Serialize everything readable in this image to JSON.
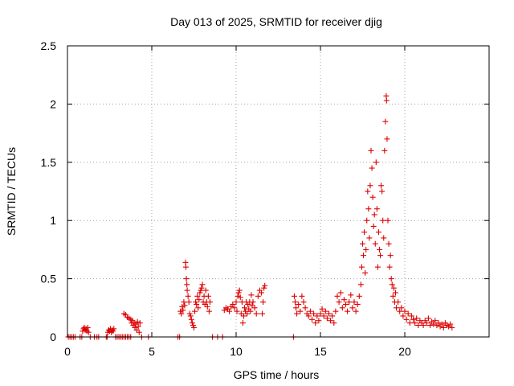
{
  "chart_data": {
    "type": "scatter",
    "title": "Day 013 of 2025, SRMTID for receiver djig",
    "xlabel": "GPS time / hours",
    "ylabel": "SRMTID / TECUs",
    "xlim": [
      0,
      25
    ],
    "ylim": [
      0,
      2.5
    ],
    "xticks": [
      0,
      5,
      10,
      15,
      20
    ],
    "xtick_labels": [
      "0",
      "5",
      "10",
      "15",
      "20"
    ],
    "yticks": [
      0,
      0.5,
      1,
      1.5,
      2,
      2.5
    ],
    "ytick_labels": [
      "0",
      "0.5",
      "1",
      "1.5",
      "2",
      "2.5"
    ],
    "grid": true,
    "marker": "+",
    "color": "#dd0000",
    "series": [
      {
        "name": "djig",
        "points": [
          [
            0.05,
            0
          ],
          [
            0.15,
            0
          ],
          [
            0.25,
            0
          ],
          [
            0.35,
            0
          ],
          [
            0.45,
            0
          ],
          [
            0.75,
            0
          ],
          [
            0.85,
            0
          ],
          [
            0.9,
            0.05
          ],
          [
            0.95,
            0.07
          ],
          [
            1.0,
            0.08
          ],
          [
            1.05,
            0.06
          ],
          [
            1.1,
            0.07
          ],
          [
            1.15,
            0.05
          ],
          [
            1.2,
            0.08
          ],
          [
            1.25,
            0.04
          ],
          [
            1.35,
            0
          ],
          [
            1.6,
            0
          ],
          [
            1.75,
            0
          ],
          [
            1.85,
            0
          ],
          [
            2.3,
            0
          ],
          [
            2.35,
            0
          ],
          [
            2.4,
            0.04
          ],
          [
            2.45,
            0.06
          ],
          [
            2.5,
            0.05
          ],
          [
            2.55,
            0.07
          ],
          [
            2.6,
            0.04
          ],
          [
            2.65,
            0.06
          ],
          [
            2.7,
            0.05
          ],
          [
            2.75,
            0.07
          ],
          [
            2.85,
            0
          ],
          [
            2.95,
            0
          ],
          [
            3.05,
            0
          ],
          [
            3.15,
            0
          ],
          [
            3.25,
            0
          ],
          [
            3.35,
            0
          ],
          [
            3.45,
            0
          ],
          [
            3.55,
            0
          ],
          [
            3.65,
            0
          ],
          [
            3.75,
            0
          ],
          [
            3.35,
            0.2
          ],
          [
            3.45,
            0.19
          ],
          [
            3.55,
            0.17
          ],
          [
            3.65,
            0.16
          ],
          [
            3.75,
            0.15
          ],
          [
            3.8,
            0.12
          ],
          [
            3.85,
            0.14
          ],
          [
            3.9,
            0.1
          ],
          [
            3.95,
            0.12
          ],
          [
            4.0,
            0.08
          ],
          [
            4.05,
            0.11
          ],
          [
            4.1,
            0.06
          ],
          [
            4.15,
            0.13
          ],
          [
            4.2,
            0.09
          ],
          [
            4.25,
            0.04
          ],
          [
            4.3,
            0.12
          ],
          [
            4.4,
            0
          ],
          [
            4.8,
            0
          ],
          [
            6.55,
            0
          ],
          [
            6.65,
            0
          ],
          [
            6.7,
            0.22
          ],
          [
            6.75,
            0.2
          ],
          [
            6.8,
            0.26
          ],
          [
            6.85,
            0.23
          ],
          [
            6.9,
            0.3
          ],
          [
            6.95,
            0.27
          ],
          [
            7.0,
            0.64
          ],
          [
            7.02,
            0.6
          ],
          [
            7.05,
            0.5
          ],
          [
            7.08,
            0.45
          ],
          [
            7.1,
            0.4
          ],
          [
            7.15,
            0.35
          ],
          [
            7.2,
            0.3
          ],
          [
            7.25,
            0.2
          ],
          [
            7.3,
            0.18
          ],
          [
            7.35,
            0.15
          ],
          [
            7.4,
            0.12
          ],
          [
            7.45,
            0.1
          ],
          [
            7.5,
            0.08
          ],
          [
            7.55,
            0.22
          ],
          [
            7.6,
            0.3
          ],
          [
            7.65,
            0.28
          ],
          [
            7.7,
            0.35
          ],
          [
            7.75,
            0.25
          ],
          [
            7.8,
            0.32
          ],
          [
            7.85,
            0.38
          ],
          [
            7.9,
            0.4
          ],
          [
            7.95,
            0.42
          ],
          [
            8.0,
            0.45
          ],
          [
            8.05,
            0.3
          ],
          [
            8.1,
            0.35
          ],
          [
            8.15,
            0.28
          ],
          [
            8.2,
            0.4
          ],
          [
            8.25,
            0.3
          ],
          [
            8.3,
            0.26
          ],
          [
            8.35,
            0.35
          ],
          [
            8.4,
            0.22
          ],
          [
            8.45,
            0.3
          ],
          [
            8.6,
            0
          ],
          [
            8.9,
            0
          ],
          [
            9.2,
            0
          ],
          [
            9.3,
            0.23
          ],
          [
            9.4,
            0.25
          ],
          [
            9.5,
            0.24
          ],
          [
            9.6,
            0.22
          ],
          [
            9.7,
            0.26
          ],
          [
            9.8,
            0.28
          ],
          [
            9.9,
            0.25
          ],
          [
            10.0,
            0.3
          ],
          [
            10.05,
            0.22
          ],
          [
            10.1,
            0.35
          ],
          [
            10.15,
            0.38
          ],
          [
            10.2,
            0.4
          ],
          [
            10.25,
            0.34
          ],
          [
            10.3,
            0.2
          ],
          [
            10.35,
            0.3
          ],
          [
            10.4,
            0.12
          ],
          [
            10.45,
            0.18
          ],
          [
            10.5,
            0.25
          ],
          [
            10.55,
            0.22
          ],
          [
            10.6,
            0.3
          ],
          [
            10.65,
            0.2
          ],
          [
            10.7,
            0.28
          ],
          [
            10.75,
            0.24
          ],
          [
            10.8,
            0.3
          ],
          [
            10.85,
            0.22
          ],
          [
            10.9,
            0.36
          ],
          [
            10.95,
            0.27
          ],
          [
            11.0,
            0.3
          ],
          [
            11.1,
            0.25
          ],
          [
            11.2,
            0.2
          ],
          [
            11.3,
            0.35
          ],
          [
            11.4,
            0.4
          ],
          [
            11.5,
            0.38
          ],
          [
            11.55,
            0.2
          ],
          [
            11.6,
            0.3
          ],
          [
            11.65,
            0.42
          ],
          [
            11.7,
            0.44
          ],
          [
            13.4,
            0
          ],
          [
            13.45,
            0.35
          ],
          [
            13.5,
            0.3
          ],
          [
            13.55,
            0.25
          ],
          [
            13.6,
            0.2
          ],
          [
            13.7,
            0.28
          ],
          [
            13.8,
            0.22
          ],
          [
            13.9,
            0.35
          ],
          [
            14.0,
            0.3
          ],
          [
            14.1,
            0.25
          ],
          [
            14.2,
            0.2
          ],
          [
            14.3,
            0.18
          ],
          [
            14.4,
            0.22
          ],
          [
            14.5,
            0.15
          ],
          [
            14.6,
            0.2
          ],
          [
            14.7,
            0.12
          ],
          [
            14.8,
            0.18
          ],
          [
            14.9,
            0.14
          ],
          [
            15.0,
            0.2
          ],
          [
            15.1,
            0.24
          ],
          [
            15.2,
            0.18
          ],
          [
            15.3,
            0.22
          ],
          [
            15.4,
            0.16
          ],
          [
            15.5,
            0.2
          ],
          [
            15.6,
            0.14
          ],
          [
            15.7,
            0.18
          ],
          [
            15.8,
            0.12
          ],
          [
            15.9,
            0.22
          ],
          [
            16.0,
            0.35
          ],
          [
            16.1,
            0.3
          ],
          [
            16.2,
            0.38
          ],
          [
            16.3,
            0.25
          ],
          [
            16.4,
            0.32
          ],
          [
            16.5,
            0.28
          ],
          [
            16.6,
            0.22
          ],
          [
            16.7,
            0.3
          ],
          [
            16.8,
            0.36
          ],
          [
            16.9,
            0.25
          ],
          [
            17.0,
            0.3
          ],
          [
            17.1,
            0.22
          ],
          [
            17.2,
            0.28
          ],
          [
            17.3,
            0.35
          ],
          [
            17.4,
            0.45
          ],
          [
            17.45,
            0.6
          ],
          [
            17.5,
            0.8
          ],
          [
            17.55,
            0.7
          ],
          [
            17.6,
            0.9
          ],
          [
            17.65,
            0.55
          ],
          [
            17.7,
            0.75
          ],
          [
            17.75,
            1.0
          ],
          [
            17.8,
            1.25
          ],
          [
            17.85,
            1.1
          ],
          [
            17.9,
            0.85
          ],
          [
            17.95,
            1.3
          ],
          [
            18.0,
            1.6
          ],
          [
            18.05,
            1.45
          ],
          [
            18.1,
            1.2
          ],
          [
            18.15,
            0.95
          ],
          [
            18.2,
            1.05
          ],
          [
            18.25,
            0.8
          ],
          [
            18.3,
            1.5
          ],
          [
            18.35,
            1.1
          ],
          [
            18.4,
            0.6
          ],
          [
            18.45,
            0.9
          ],
          [
            18.5,
            0.75
          ],
          [
            18.55,
            0.7
          ],
          [
            18.6,
            1.3
          ],
          [
            18.65,
            1.25
          ],
          [
            18.7,
            1.0
          ],
          [
            18.75,
            0.85
          ],
          [
            18.8,
            1.6
          ],
          [
            18.85,
            1.85
          ],
          [
            18.9,
            2.07
          ],
          [
            18.92,
            2.03
          ],
          [
            18.95,
            1.7
          ],
          [
            19.0,
            1.0
          ],
          [
            19.05,
            0.8
          ],
          [
            19.1,
            0.6
          ],
          [
            19.15,
            0.7
          ],
          [
            19.2,
            0.5
          ],
          [
            19.25,
            0.45
          ],
          [
            19.3,
            0.35
          ],
          [
            19.35,
            0.42
          ],
          [
            19.4,
            0.3
          ],
          [
            19.45,
            0.38
          ],
          [
            19.5,
            0.25
          ],
          [
            19.6,
            0.3
          ],
          [
            19.7,
            0.22
          ],
          [
            19.8,
            0.25
          ],
          [
            19.9,
            0.18
          ],
          [
            20.0,
            0.22
          ],
          [
            20.1,
            0.15
          ],
          [
            20.2,
            0.2
          ],
          [
            20.3,
            0.12
          ],
          [
            20.4,
            0.18
          ],
          [
            20.5,
            0.15
          ],
          [
            20.6,
            0.12
          ],
          [
            20.7,
            0.16
          ],
          [
            20.8,
            0.1
          ],
          [
            20.9,
            0.14
          ],
          [
            21.0,
            0.12
          ],
          [
            21.1,
            0.1
          ],
          [
            21.2,
            0.14
          ],
          [
            21.3,
            0.12
          ],
          [
            21.4,
            0.16
          ],
          [
            21.5,
            0.1
          ],
          [
            21.6,
            0.13
          ],
          [
            21.7,
            0.11
          ],
          [
            21.8,
            0.14
          ],
          [
            21.9,
            0.1
          ],
          [
            22.0,
            0.12
          ],
          [
            22.1,
            0.09
          ],
          [
            22.2,
            0.11
          ],
          [
            22.3,
            0.08
          ],
          [
            22.4,
            0.12
          ],
          [
            22.5,
            0.1
          ],
          [
            22.6,
            0.09
          ],
          [
            22.7,
            0.11
          ],
          [
            22.8,
            0.08
          ]
        ]
      }
    ]
  }
}
